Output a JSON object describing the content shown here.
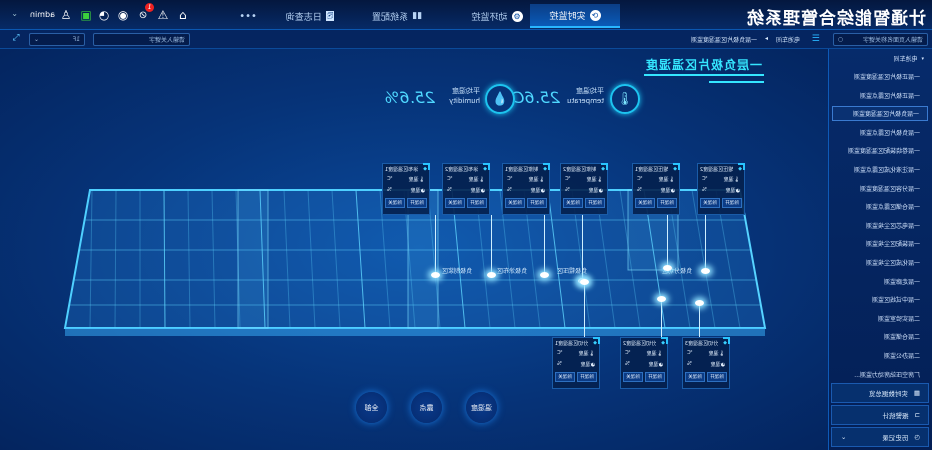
{
  "header": {
    "title": "计通智能综合管理系统",
    "tabs": [
      {
        "label": "实时监控",
        "icon": "monitor-icon",
        "active": true
      },
      {
        "label": "动环监控",
        "icon": "gear-icon"
      },
      {
        "label": "系统配置",
        "icon": "bar-chart-icon"
      },
      {
        "label": "日志查询",
        "icon": "log-icon"
      }
    ],
    "more": "•••",
    "user": "admin",
    "alert_count": "1",
    "icons": [
      "home-icon",
      "warning-icon",
      "eye-off-icon",
      "target-icon",
      "timer-icon",
      "screen-icon",
      "user-icon"
    ]
  },
  "subbar": {
    "search_placeholder": "请输入页面名称关键字",
    "breadcrumb": [
      "电池车间",
      "一层负极片区温湿度监测"
    ],
    "floor_select": "1F",
    "device_search_placeholder": "请输入关键字"
  },
  "sidebar": {
    "root": "电池车间",
    "items": [
      "一层正极片区温湿度监测",
      "一层正极片区露点监测",
      "一层负极片区温湿度监测",
      "一层负极片区露点监测",
      "一层卷绕装配区温湿度监测",
      "一层注液化成区露点监测",
      "一层分容区温湿度监测",
      "一层仓储区露点监测",
      "一层电芯区尘埃监测",
      "一层装配区尘埃监测",
      "一层化成区尘埃监测",
      "一层走廊监测",
      "一层中试线区监测",
      "二层实验室监测",
      "二层仓储监测",
      "二层办公监测",
      "厂房空压站房动力监测..."
    ],
    "selected": 2,
    "bottom_buttons": [
      {
        "label": "实时数据总览",
        "icon": "grid-icon"
      },
      {
        "label": "报警统计",
        "icon": "alarm-icon"
      },
      {
        "label": "历史记录",
        "icon": "clock-icon"
      }
    ]
  },
  "main": {
    "title": "一层负极片区温湿度",
    "temperature": {
      "label": "平均温度",
      "sub": "temperatu",
      "value": "25.6C"
    },
    "humidity": {
      "label": "平均湿度",
      "sub": "humidity",
      "value": "25.6%"
    },
    "map_labels": [
      "负极制浆区",
      "负极涂布区",
      "负极辊压区",
      "负极分切区"
    ],
    "cards": [
      {
        "title": "涂布区温湿度1"
      },
      {
        "title": "涂布区温湿度2"
      },
      {
        "title": "制浆区温湿度1"
      },
      {
        "title": "制浆区温湿度2"
      },
      {
        "title": "辊压区温湿度1"
      },
      {
        "title": "辊压区温湿度2"
      },
      {
        "title": "分切区温湿度1"
      },
      {
        "title": "分切区温湿度2"
      },
      {
        "title": "分切区温湿度3"
      }
    ],
    "card_labels": {
      "temp": "温度",
      "temp_unit": "℃",
      "hum": "湿度",
      "hum_unit": "%",
      "on": "除湿开",
      "off": "除湿关"
    },
    "filters": [
      "全部",
      "露点",
      "温湿度"
    ]
  },
  "colors": {
    "accent": "#35e6ff",
    "bg": "#063378",
    "active_icon": "#3ccf3c",
    "alert": "#e22222"
  }
}
